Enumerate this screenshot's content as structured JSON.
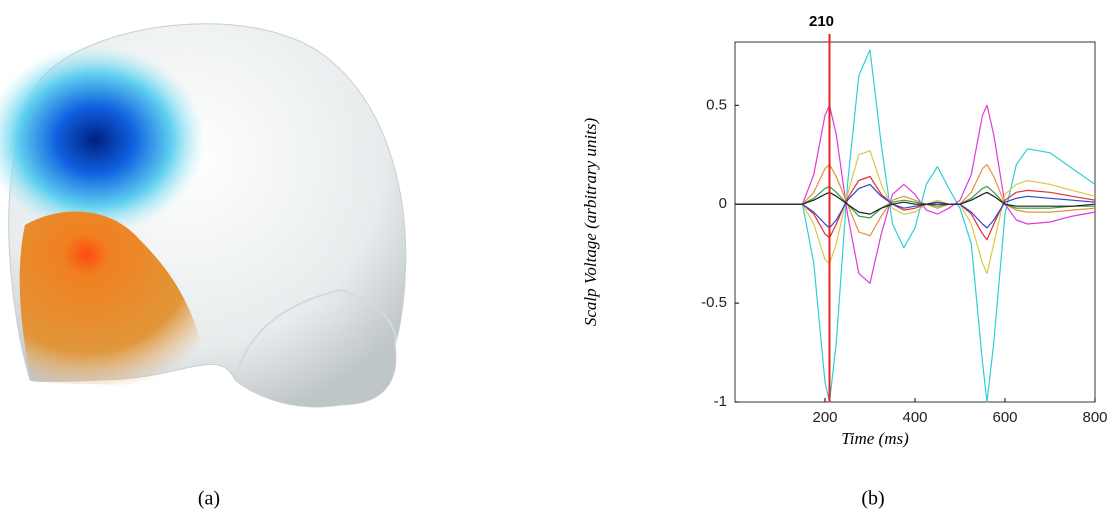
{
  "chart_data": {
    "type": "line",
    "xlabel": "Time (ms)",
    "ylabel": "Scalp Voltage (arbitrary units)",
    "xlim": [
      0,
      800
    ],
    "ylim": [
      -1,
      0.82
    ],
    "xticks": [
      200,
      400,
      600,
      800
    ],
    "yticks": [
      -1,
      -0.5,
      0,
      0.5
    ],
    "marker": {
      "x": 210,
      "label": "210",
      "color": "#e8231f"
    },
    "x": [
      0,
      100,
      150,
      175,
      200,
      210,
      225,
      250,
      275,
      300,
      325,
      350,
      375,
      400,
      425,
      450,
      475,
      500,
      525,
      550,
      560,
      575,
      600,
      625,
      650,
      700,
      750,
      800
    ],
    "series": [
      {
        "name": "cyan",
        "color": "#2ccfd6",
        "values": [
          0,
          0,
          0,
          -0.3,
          -0.9,
          -1,
          -0.7,
          0.1,
          0.65,
          0.78,
          0.3,
          -0.1,
          -0.22,
          -0.12,
          0.1,
          0.19,
          0.08,
          -0.02,
          -0.2,
          -0.8,
          -1,
          -0.7,
          -0.05,
          0.2,
          0.28,
          0.26,
          0.18,
          0.1
        ]
      },
      {
        "name": "magenta",
        "color": "#e03ad8",
        "values": [
          0,
          0,
          0,
          0.15,
          0.45,
          0.5,
          0.35,
          -0.05,
          -0.35,
          -0.4,
          -0.15,
          0.05,
          0.1,
          0.05,
          -0.03,
          -0.05,
          -0.02,
          0.02,
          0.15,
          0.45,
          0.5,
          0.35,
          0,
          -0.08,
          -0.1,
          -0.09,
          -0.06,
          -0.04
        ]
      },
      {
        "name": "yellow",
        "color": "#d9c84a",
        "values": [
          0,
          0,
          0,
          -0.1,
          -0.28,
          -0.3,
          -0.2,
          0.05,
          0.25,
          0.27,
          0.1,
          -0.02,
          -0.05,
          -0.04,
          0,
          0.02,
          0,
          0,
          -0.1,
          -0.3,
          -0.35,
          -0.2,
          0.05,
          0.1,
          0.12,
          0.1,
          0.07,
          0.04
        ]
      },
      {
        "name": "orange",
        "color": "#e8903a",
        "values": [
          0,
          0,
          0,
          0.06,
          0.18,
          0.2,
          0.14,
          0,
          -0.14,
          -0.16,
          -0.06,
          0.02,
          0.04,
          0.02,
          0,
          -0.02,
          0,
          0,
          0.06,
          0.18,
          0.2,
          0.14,
          0,
          -0.03,
          -0.04,
          -0.04,
          -0.03,
          -0.02
        ]
      },
      {
        "name": "red",
        "color": "#e03030",
        "values": [
          0,
          0,
          0,
          -0.05,
          -0.15,
          -0.17,
          -0.1,
          0.03,
          0.12,
          0.14,
          0.05,
          0,
          -0.03,
          -0.02,
          0,
          0.01,
          0,
          0,
          -0.05,
          -0.15,
          -0.18,
          -0.1,
          0.02,
          0.06,
          0.07,
          0.06,
          0.04,
          0.02
        ]
      },
      {
        "name": "green",
        "color": "#30a040",
        "values": [
          0,
          0,
          0,
          0.03,
          0.08,
          0.09,
          0.06,
          0,
          -0.06,
          -0.07,
          -0.02,
          0.01,
          0.02,
          0.01,
          0,
          -0.01,
          0,
          0,
          0.03,
          0.08,
          0.09,
          0.06,
          0,
          -0.02,
          -0.02,
          -0.02,
          -0.01,
          -0.01
        ]
      },
      {
        "name": "blue",
        "color": "#3040d0",
        "values": [
          0,
          0,
          0,
          -0.04,
          -0.1,
          -0.12,
          -0.08,
          0.02,
          0.08,
          0.1,
          0.04,
          0,
          -0.02,
          -0.01,
          0,
          0.01,
          0,
          0,
          -0.04,
          -0.1,
          -0.12,
          -0.08,
          0.01,
          0.03,
          0.04,
          0.03,
          0.02,
          0.01
        ]
      },
      {
        "name": "black",
        "color": "#202020",
        "values": [
          0,
          0,
          0,
          0.02,
          0.05,
          0.06,
          0.04,
          0,
          -0.04,
          -0.05,
          -0.02,
          0,
          0.01,
          0,
          0,
          0,
          0,
          0,
          0.02,
          0.05,
          0.06,
          0.04,
          0,
          -0.01,
          -0.01,
          -0.01,
          -0.01,
          0
        ]
      }
    ]
  },
  "panel_labels": [
    "(a)",
    "(b)"
  ]
}
